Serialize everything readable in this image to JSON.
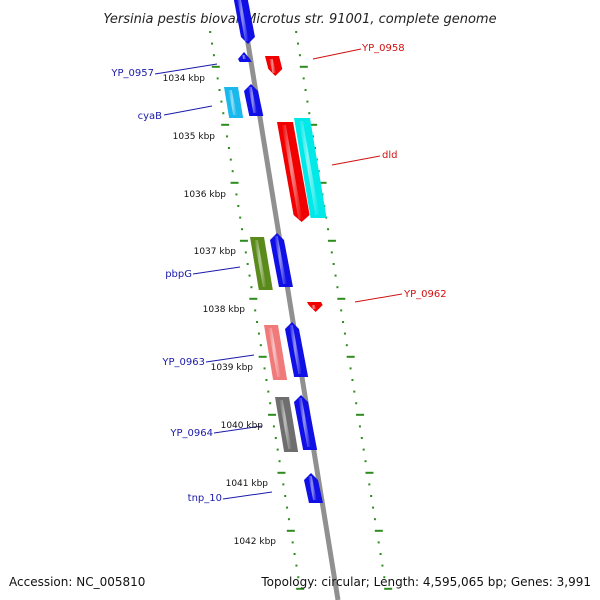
{
  "title": "Yersinia pestis biovar Microtus str. 91001, complete genome",
  "footer": {
    "accession": "Accession: NC_005810",
    "topology": "Topology: circular; Length: 4,595,065 bp; Genes: 3,991"
  },
  "colors": {
    "backbone": "#909090",
    "tick": "#2e8b1e",
    "label_reverse": "#1a1aaa",
    "label_forward": "#d01010",
    "blue": "#1010e6",
    "red": "#f00000",
    "cyan": "#00e8e8",
    "lightblue": "#1ab8ec",
    "olive": "#5a8a1a",
    "pink": "#f07a7a",
    "gray": "#6e6e6e"
  },
  "kbp_labels": [
    "1034 kbp",
    "1035 kbp",
    "1036 kbp",
    "1037 kbp",
    "1038 kbp",
    "1039 kbp",
    "1040 kbp",
    "1041 kbp",
    "1042 kbp"
  ],
  "gene_labels": [
    "YP_0957",
    "cyaB",
    "pbpG",
    "YP_0963",
    "YP_0964",
    "tnp_10",
    "YP_0958",
    "dld",
    "YP_0962"
  ],
  "genes": [
    {
      "name": "gene-top-blue",
      "color": "blue"
    },
    {
      "name": "gene-yp0957",
      "color": "blue"
    },
    {
      "name": "gene-yp0958",
      "color": "red"
    },
    {
      "name": "gene-cyab",
      "color": "lightblue"
    },
    {
      "name": "gene-cyab-neighbor",
      "color": "blue"
    },
    {
      "name": "gene-dld",
      "color": "red"
    },
    {
      "name": "gene-dld-cds",
      "color": "cyan"
    },
    {
      "name": "gene-pbpg",
      "color": "olive"
    },
    {
      "name": "gene-pbpg-neighbor",
      "color": "blue"
    },
    {
      "name": "gene-yp0962",
      "color": "red"
    },
    {
      "name": "gene-yp0963",
      "color": "pink"
    },
    {
      "name": "gene-yp0963-neighbor",
      "color": "blue"
    },
    {
      "name": "gene-yp0964",
      "color": "gray"
    },
    {
      "name": "gene-yp0964-neighbor",
      "color": "blue"
    },
    {
      "name": "gene-tnp10",
      "color": "blue"
    }
  ]
}
